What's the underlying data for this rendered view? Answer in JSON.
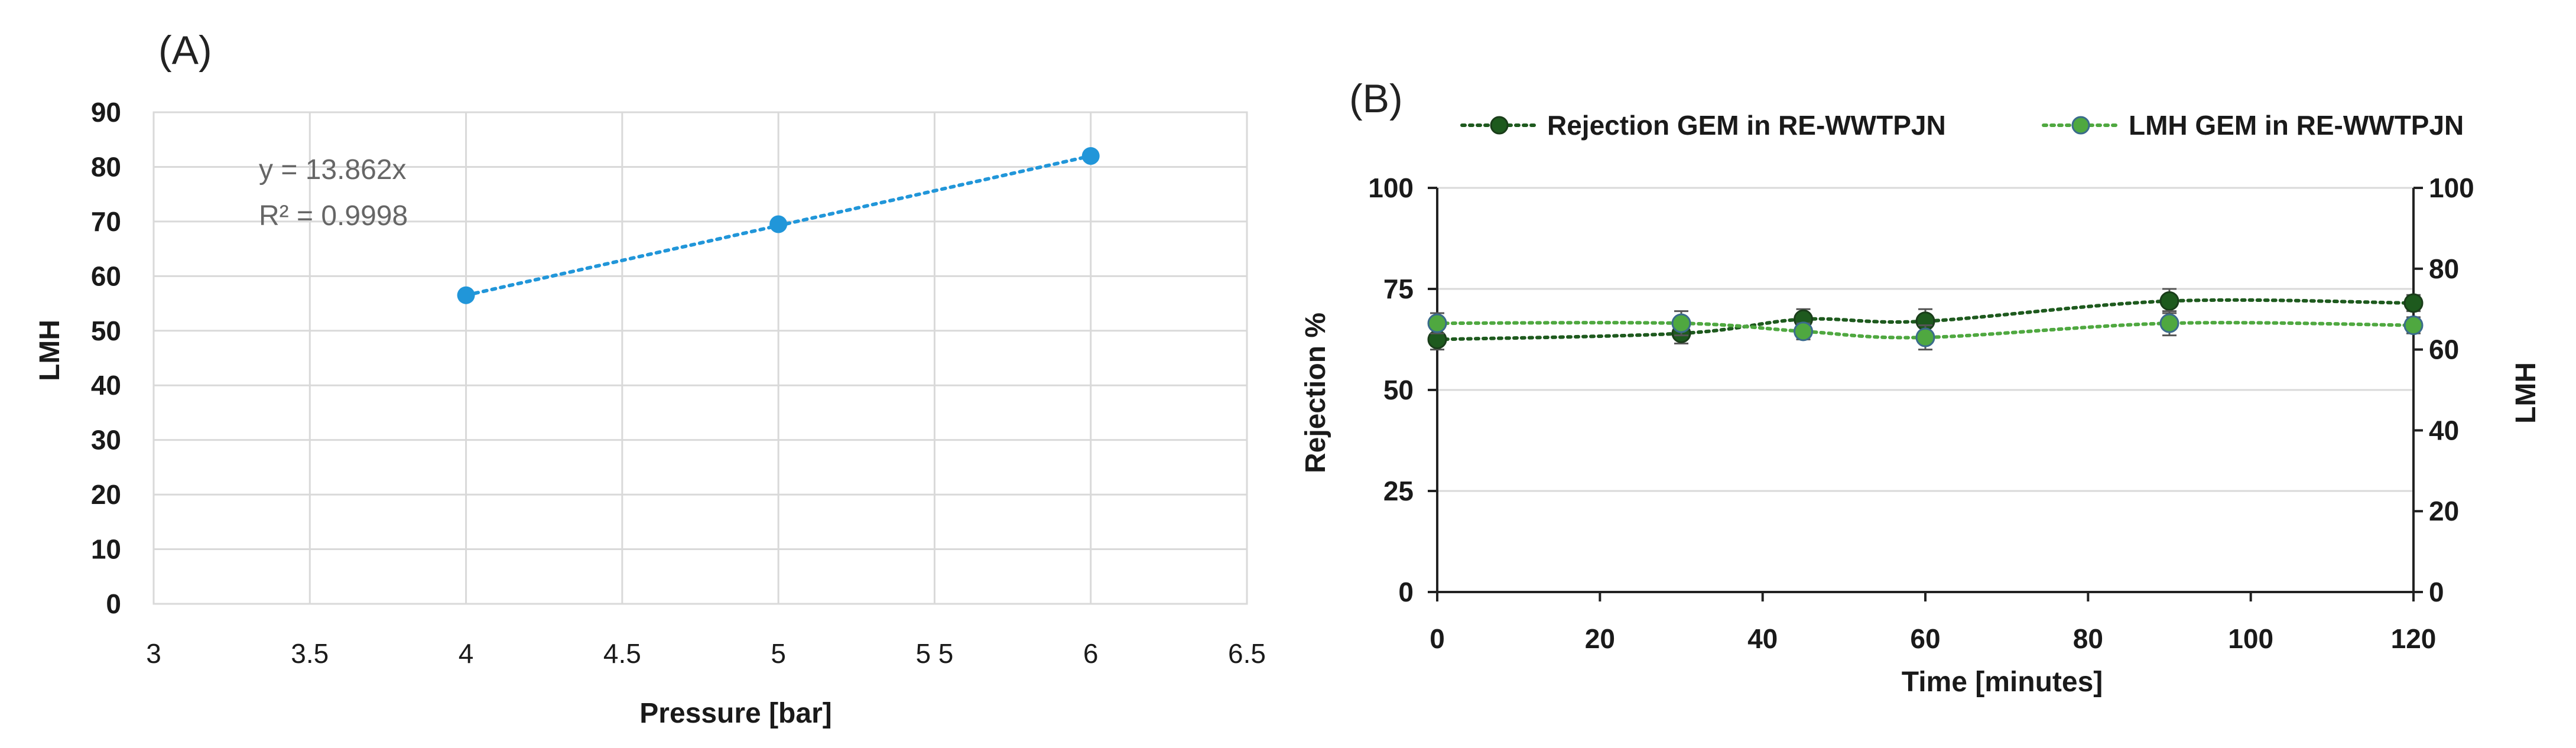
{
  "chart_data": [
    {
      "panel": "(A)",
      "type": "scatter",
      "xlabel": "Pressure [bar]",
      "ylabel": "LMH",
      "xlim": [
        3,
        6.5
      ],
      "ylim": [
        0,
        90
      ],
      "xticks": [
        "3",
        "3.5",
        "4",
        "4.5",
        "5",
        "5 5",
        "6",
        "6.5"
      ],
      "yticks": [
        "0",
        "10",
        "20",
        "30",
        "40",
        "50",
        "60",
        "70",
        "80",
        "90"
      ],
      "grid": true,
      "series": [
        {
          "color": "#2196d9",
          "points": [
            {
              "x": 4,
              "y": 56.5
            },
            {
              "x": 5,
              "y": 69.5
            },
            {
              "x": 6,
              "y": 82.0
            }
          ]
        }
      ],
      "trendline": {
        "x_from": 4,
        "x_to": 6,
        "y_from": 56.5,
        "y_to": 82.0,
        "equation": "y = 13.862x",
        "r2": "R² = 0.9998"
      }
    },
    {
      "panel": "(B)",
      "type": "line",
      "xlabel": "Time [minutes]",
      "ylabel_left": "Rejection %",
      "ylabel_right": "LMH",
      "xlim": [
        0,
        120
      ],
      "ylim_left": [
        0,
        100
      ],
      "ylim_right": [
        0,
        100
      ],
      "xticks": [
        "0",
        "20",
        "40",
        "60",
        "80",
        "100",
        "120"
      ],
      "yticks_left": [
        "0",
        "25",
        "50",
        "75",
        "100"
      ],
      "yticks_right": [
        "0",
        "20",
        "40",
        "60",
        "80",
        "100"
      ],
      "grid": true,
      "legend_position": "top",
      "series": [
        {
          "name": "Rejection GEM in RE-WWTPJN",
          "color": "#1e5a1e",
          "axis": "left",
          "points": [
            {
              "x": 0,
              "y": 62.5,
              "err": 2.5
            },
            {
              "x": 30,
              "y": 64.0,
              "err": 2.5
            },
            {
              "x": 45,
              "y": 67.5,
              "err": 2.5
            },
            {
              "x": 60,
              "y": 67.0,
              "err": 3.0
            },
            {
              "x": 90,
              "y": 72.0,
              "err": 3.0
            },
            {
              "x": 120,
              "y": 71.5,
              "err": 2.0
            }
          ]
        },
        {
          "name": "LMH GEM in RE-WWTPJN",
          "color": "#4fa840",
          "axis": "right",
          "points": [
            {
              "x": 0,
              "y": 66.5,
              "err": 2.5
            },
            {
              "x": 30,
              "y": 66.5,
              "err": 3.0
            },
            {
              "x": 45,
              "y": 64.5,
              "err": 2.0
            },
            {
              "x": 60,
              "y": 63.0,
              "err": 3.0
            },
            {
              "x": 90,
              "y": 66.5,
              "err": 3.0
            },
            {
              "x": 120,
              "y": 66.0,
              "err": 2.0
            }
          ]
        }
      ]
    }
  ]
}
